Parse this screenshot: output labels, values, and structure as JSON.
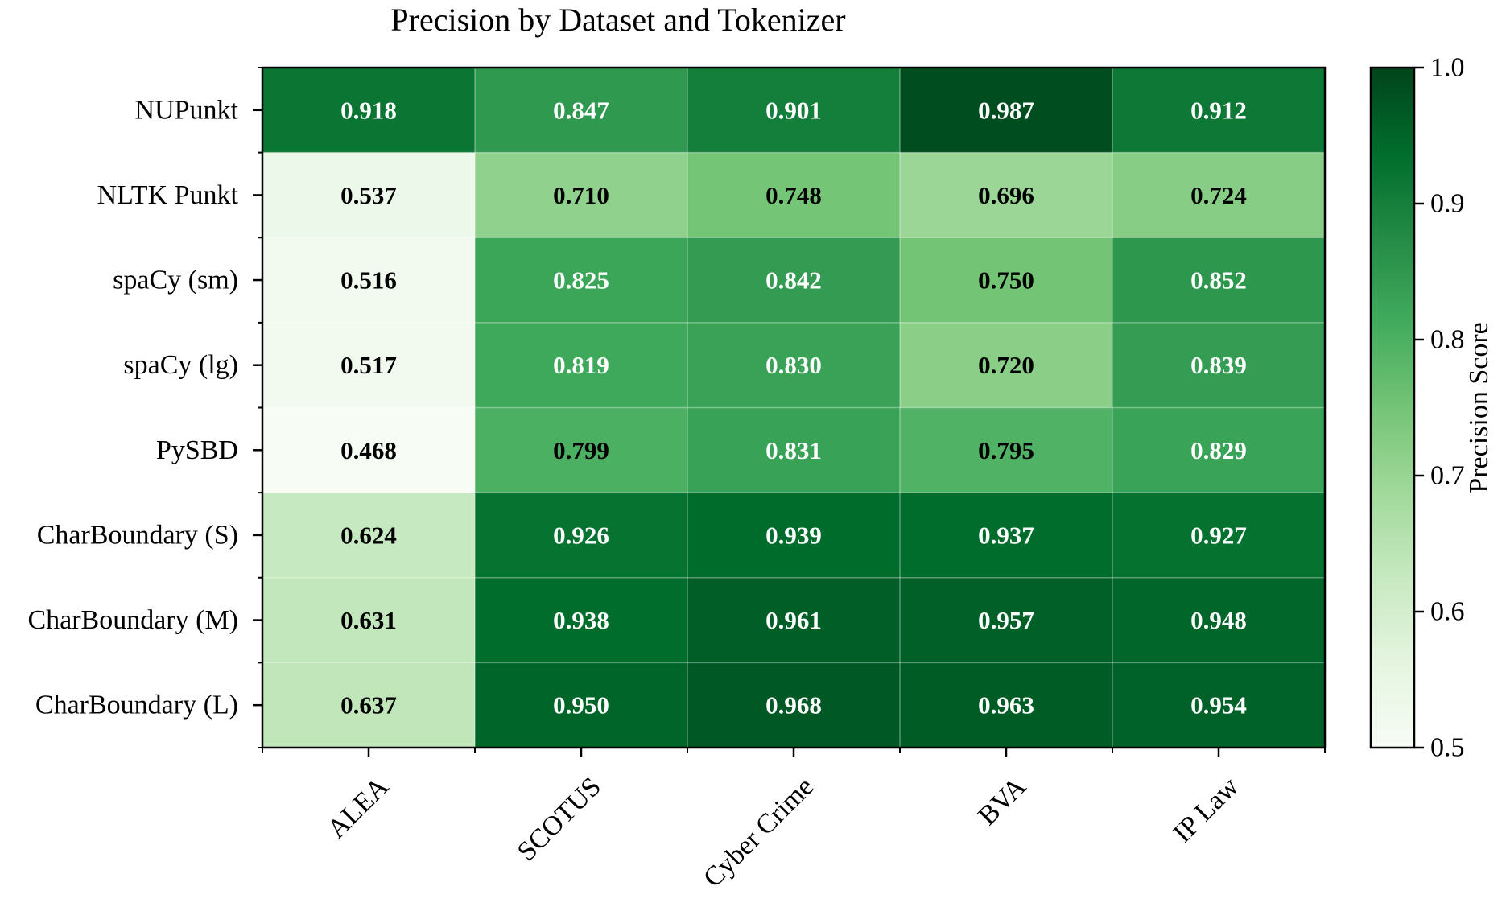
{
  "chart_data": {
    "type": "heatmap",
    "title": "Precision by Dataset and Tokenizer",
    "xlabel": "",
    "ylabel": "",
    "columns": [
      "ALEA",
      "SCOTUS",
      "Cyber Crime",
      "BVA",
      "IP Law"
    ],
    "rows": [
      "NUPunkt",
      "NLTK Punkt",
      "spaCy (sm)",
      "spaCy (lg)",
      "PySBD",
      "CharBoundary (S)",
      "CharBoundary (M)",
      "CharBoundary (L)"
    ],
    "values": [
      [
        0.918,
        0.847,
        0.901,
        0.987,
        0.912
      ],
      [
        0.537,
        0.71,
        0.748,
        0.696,
        0.724
      ],
      [
        0.516,
        0.825,
        0.842,
        0.75,
        0.852
      ],
      [
        0.517,
        0.819,
        0.83,
        0.72,
        0.839
      ],
      [
        0.468,
        0.799,
        0.831,
        0.795,
        0.829
      ],
      [
        0.624,
        0.926,
        0.939,
        0.937,
        0.927
      ],
      [
        0.631,
        0.938,
        0.961,
        0.957,
        0.948
      ],
      [
        0.637,
        0.95,
        0.968,
        0.963,
        0.954
      ]
    ],
    "value_labels": [
      [
        "0.918",
        "0.847",
        "0.901",
        "0.987",
        "0.912"
      ],
      [
        "0.537",
        "0.710",
        "0.748",
        "0.696",
        "0.724"
      ],
      [
        "0.516",
        "0.825",
        "0.842",
        "0.750",
        "0.852"
      ],
      [
        "0.517",
        "0.819",
        "0.830",
        "0.720",
        "0.839"
      ],
      [
        "0.468",
        "0.799",
        "0.831",
        "0.795",
        "0.829"
      ],
      [
        "0.624",
        "0.926",
        "0.939",
        "0.937",
        "0.927"
      ],
      [
        "0.631",
        "0.938",
        "0.961",
        "0.957",
        "0.948"
      ],
      [
        "0.637",
        "0.950",
        "0.968",
        "0.963",
        "0.954"
      ]
    ],
    "colorbar": {
      "label": "Precision Score",
      "vmin": 0.5,
      "vmax": 1.0,
      "ticks": [
        0.5,
        0.6,
        0.7,
        0.8,
        0.9,
        1.0
      ],
      "tick_labels": [
        "0.5",
        "0.6",
        "0.7",
        "0.8",
        "0.9",
        "1.0"
      ]
    },
    "colormap": "Greens",
    "colormap_stops": [
      "#f7fcf5",
      "#e5f5e0",
      "#c7e9c0",
      "#a1d99b",
      "#74c476",
      "#41ab5d",
      "#238b45",
      "#006d2c",
      "#00441b"
    ],
    "label_color_dark": "#000000",
    "label_color_light": "#ffffff",
    "grid": true,
    "grid_color": "#ffffff"
  }
}
